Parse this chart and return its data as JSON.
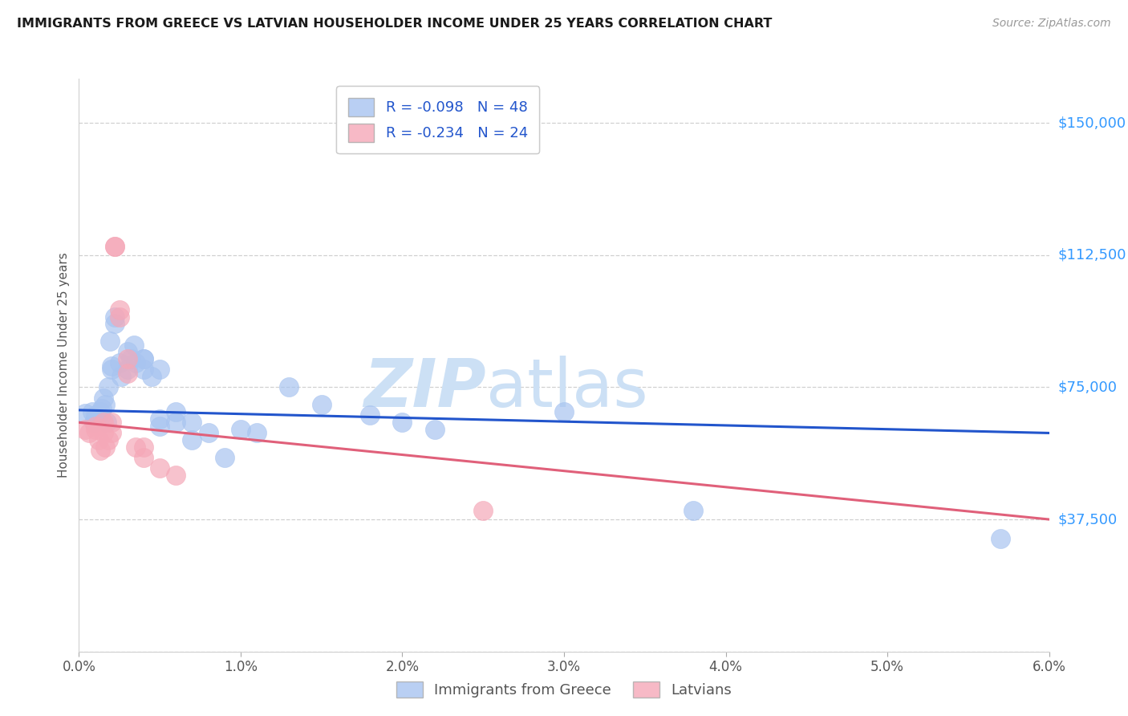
{
  "title": "IMMIGRANTS FROM GREECE VS LATVIAN HOUSEHOLDER INCOME UNDER 25 YEARS CORRELATION CHART",
  "source": "Source: ZipAtlas.com",
  "ylabel_axis": "Householder Income Under 25 years",
  "xlim": [
    0.0,
    0.06
  ],
  "ylim": [
    0,
    162500
  ],
  "ytick_vals": [
    0,
    37500,
    75000,
    112500,
    150000
  ],
  "ytick_labels": [
    "",
    "$37,500",
    "$75,000",
    "$112,500",
    "$150,000"
  ],
  "xtick_vals": [
    0.0,
    0.01,
    0.02,
    0.03,
    0.04,
    0.05,
    0.06
  ],
  "xtick_labels": [
    "0.0%",
    "1.0%",
    "2.0%",
    "3.0%",
    "4.0%",
    "5.0%",
    "6.0%"
  ],
  "legend1_label": "R = -0.098   N = 48",
  "legend2_label": "R = -0.234   N = 24",
  "legend_labels": [
    "Immigrants from Greece",
    "Latvians"
  ],
  "blue_scatter_color": "#a8c4f0",
  "pink_scatter_color": "#f5a8b8",
  "blue_line_color": "#2255cc",
  "pink_line_color": "#e0607a",
  "label_color": "#3399ff",
  "watermark_color": "#cce0f5",
  "greece_scatter": [
    [
      0.0004,
      67500
    ],
    [
      0.0008,
      68000
    ],
    [
      0.0009,
      65000
    ],
    [
      0.001,
      67000
    ],
    [
      0.001,
      66000
    ],
    [
      0.0012,
      67000
    ],
    [
      0.0013,
      68000
    ],
    [
      0.0013,
      66500
    ],
    [
      0.0014,
      69000
    ],
    [
      0.0015,
      72000
    ],
    [
      0.0016,
      70000
    ],
    [
      0.0017,
      65000
    ],
    [
      0.0018,
      75000
    ],
    [
      0.0019,
      88000
    ],
    [
      0.002,
      80000
    ],
    [
      0.002,
      81000
    ],
    [
      0.0022,
      93000
    ],
    [
      0.0022,
      95000
    ],
    [
      0.0025,
      82000
    ],
    [
      0.0026,
      78000
    ],
    [
      0.003,
      85000
    ],
    [
      0.003,
      80000
    ],
    [
      0.0032,
      83000
    ],
    [
      0.0034,
      87000
    ],
    [
      0.0035,
      82000
    ],
    [
      0.004,
      83000
    ],
    [
      0.004,
      80000
    ],
    [
      0.004,
      83000
    ],
    [
      0.0045,
      78000
    ],
    [
      0.005,
      80000
    ],
    [
      0.005,
      66000
    ],
    [
      0.005,
      64000
    ],
    [
      0.006,
      65000
    ],
    [
      0.006,
      68000
    ],
    [
      0.007,
      65000
    ],
    [
      0.007,
      60000
    ],
    [
      0.008,
      62000
    ],
    [
      0.009,
      55000
    ],
    [
      0.01,
      63000
    ],
    [
      0.011,
      62000
    ],
    [
      0.013,
      75000
    ],
    [
      0.015,
      70000
    ],
    [
      0.018,
      67000
    ],
    [
      0.02,
      65000
    ],
    [
      0.022,
      63000
    ],
    [
      0.03,
      68000
    ],
    [
      0.038,
      40000
    ],
    [
      0.057,
      32000
    ]
  ],
  "latvian_scatter": [
    [
      0.0004,
      63000
    ],
    [
      0.0006,
      62000
    ],
    [
      0.001,
      64000
    ],
    [
      0.001,
      63000
    ],
    [
      0.0012,
      60000
    ],
    [
      0.0013,
      57000
    ],
    [
      0.0015,
      65000
    ],
    [
      0.0015,
      62000
    ],
    [
      0.0016,
      58000
    ],
    [
      0.0018,
      60000
    ],
    [
      0.002,
      65000
    ],
    [
      0.002,
      62000
    ],
    [
      0.0022,
      115000
    ],
    [
      0.0022,
      115000
    ],
    [
      0.0025,
      95000
    ],
    [
      0.0025,
      97000
    ],
    [
      0.003,
      83000
    ],
    [
      0.003,
      79000
    ],
    [
      0.0035,
      58000
    ],
    [
      0.004,
      58000
    ],
    [
      0.004,
      55000
    ],
    [
      0.005,
      52000
    ],
    [
      0.006,
      50000
    ],
    [
      0.025,
      40000
    ]
  ],
  "blue_trendline_x": [
    0.0,
    0.06
  ],
  "blue_trendline_y": [
    68500,
    62000
  ],
  "pink_trendline_x": [
    0.0,
    0.06
  ],
  "pink_trendline_y": [
    65000,
    37500
  ]
}
